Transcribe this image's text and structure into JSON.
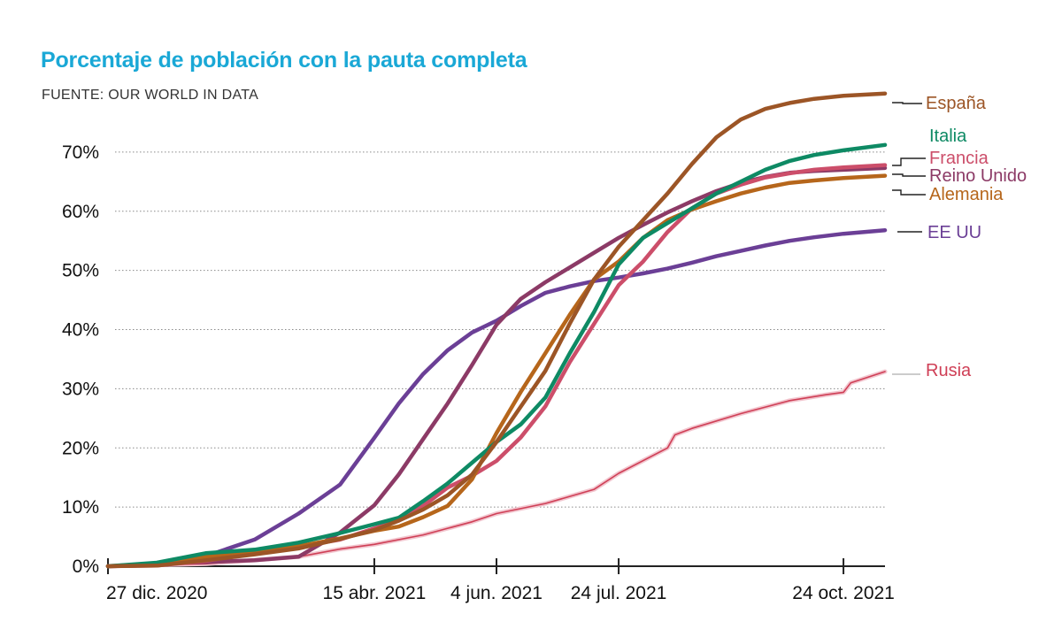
{
  "title": "Porcentaje de población con la pauta completa",
  "source": "FUENTE: OUR WORLD IN DATA",
  "chart_data": {
    "type": "line",
    "title": "Porcentaje de población con la pauta completa",
    "x_axis": {
      "type": "date",
      "range": [
        "2020-12-27",
        "2021-11-10"
      ],
      "ticks": [
        {
          "date": "2020-12-27",
          "label": "27 dic. 2020"
        },
        {
          "date": "2021-04-15",
          "label": "15 abr. 2021"
        },
        {
          "date": "2021-06-04",
          "label": "4 jun. 2021"
        },
        {
          "date": "2021-07-24",
          "label": "24 jul. 2021"
        },
        {
          "date": "2021-10-24",
          "label": "24 oct. 2021"
        }
      ]
    },
    "y_axis": {
      "range": [
        0,
        80
      ],
      "ticks": [
        0,
        10,
        20,
        30,
        40,
        50,
        60,
        70
      ],
      "tick_labels": [
        "0%",
        "10%",
        "20%",
        "30%",
        "40%",
        "50%",
        "60%",
        "70%"
      ],
      "grid": true
    },
    "legend": "direct labels at line ends (right)",
    "series": [
      {
        "name": "España",
        "color": "#9c5526",
        "points": [
          [
            "2020-12-27",
            0
          ],
          [
            "2021-01-16",
            0.1
          ],
          [
            "2021-02-05",
            1
          ],
          [
            "2021-02-25",
            2
          ],
          [
            "2021-03-15",
            3
          ],
          [
            "2021-04-01",
            4.6
          ],
          [
            "2021-04-15",
            6.1
          ],
          [
            "2021-04-25",
            7.7
          ],
          [
            "2021-05-05",
            9.6
          ],
          [
            "2021-05-15",
            12
          ],
          [
            "2021-05-25",
            15.5
          ],
          [
            "2021-06-04",
            21
          ],
          [
            "2021-06-14",
            27
          ],
          [
            "2021-06-24",
            33
          ],
          [
            "2021-07-04",
            41
          ],
          [
            "2021-07-14",
            48.5
          ],
          [
            "2021-07-24",
            54
          ],
          [
            "2021-08-03",
            58.5
          ],
          [
            "2021-08-13",
            63
          ],
          [
            "2021-08-23",
            68
          ],
          [
            "2021-09-02",
            72.5
          ],
          [
            "2021-09-12",
            75.5
          ],
          [
            "2021-09-22",
            77.3
          ],
          [
            "2021-10-02",
            78.3
          ],
          [
            "2021-10-12",
            79
          ],
          [
            "2021-10-24",
            79.5
          ],
          [
            "2021-11-10",
            79.9
          ]
        ]
      },
      {
        "name": "Italia",
        "color": "#0e8a64",
        "points": [
          [
            "2020-12-27",
            0
          ],
          [
            "2021-01-16",
            0.6
          ],
          [
            "2021-02-05",
            2.2
          ],
          [
            "2021-02-25",
            2.8
          ],
          [
            "2021-03-15",
            4
          ],
          [
            "2021-04-01",
            5.6
          ],
          [
            "2021-04-15",
            7.1
          ],
          [
            "2021-04-25",
            8.2
          ],
          [
            "2021-05-05",
            11
          ],
          [
            "2021-05-15",
            14
          ],
          [
            "2021-05-25",
            17.5
          ],
          [
            "2021-06-04",
            21
          ],
          [
            "2021-06-14",
            24
          ],
          [
            "2021-06-24",
            28.5
          ],
          [
            "2021-07-04",
            36
          ],
          [
            "2021-07-14",
            43
          ],
          [
            "2021-07-24",
            51
          ],
          [
            "2021-08-03",
            55.5
          ],
          [
            "2021-08-13",
            58
          ],
          [
            "2021-08-23",
            60.5
          ],
          [
            "2021-09-02",
            63
          ],
          [
            "2021-09-12",
            65
          ],
          [
            "2021-09-22",
            67
          ],
          [
            "2021-10-02",
            68.5
          ],
          [
            "2021-10-12",
            69.5
          ],
          [
            "2021-10-24",
            70.3
          ],
          [
            "2021-11-10",
            71.2
          ]
        ]
      },
      {
        "name": "Francia",
        "color": "#cc4e6a",
        "points": [
          [
            "2020-12-27",
            0
          ],
          [
            "2021-01-16",
            0.1
          ],
          [
            "2021-02-05",
            0.9
          ],
          [
            "2021-02-25",
            2.3
          ],
          [
            "2021-03-15",
            3.3
          ],
          [
            "2021-04-01",
            4.5
          ],
          [
            "2021-04-15",
            6.4
          ],
          [
            "2021-04-25",
            7.7
          ],
          [
            "2021-05-05",
            10.2
          ],
          [
            "2021-05-15",
            13.3
          ],
          [
            "2021-05-25",
            15.3
          ],
          [
            "2021-06-04",
            17.8
          ],
          [
            "2021-06-14",
            21.8
          ],
          [
            "2021-06-24",
            27
          ],
          [
            "2021-07-04",
            34.5
          ],
          [
            "2021-07-14",
            41
          ],
          [
            "2021-07-24",
            47.5
          ],
          [
            "2021-08-03",
            51.5
          ],
          [
            "2021-08-13",
            56.5
          ],
          [
            "2021-08-23",
            60.5
          ],
          [
            "2021-09-02",
            63
          ],
          [
            "2021-09-12",
            64.5
          ],
          [
            "2021-09-22",
            65.7
          ],
          [
            "2021-10-02",
            66.4
          ],
          [
            "2021-10-12",
            67
          ],
          [
            "2021-10-24",
            67.4
          ],
          [
            "2021-11-10",
            67.8
          ]
        ]
      },
      {
        "name": "Reino Unido",
        "color": "#8c3a66",
        "points": [
          [
            "2020-12-27",
            0
          ],
          [
            "2021-01-16",
            0.5
          ],
          [
            "2021-02-05",
            0.7
          ],
          [
            "2021-02-25",
            1
          ],
          [
            "2021-03-15",
            1.6
          ],
          [
            "2021-04-01",
            5.7
          ],
          [
            "2021-04-15",
            10.3
          ],
          [
            "2021-04-25",
            15.5
          ],
          [
            "2021-05-05",
            21.5
          ],
          [
            "2021-05-15",
            27.5
          ],
          [
            "2021-05-25",
            34
          ],
          [
            "2021-06-04",
            40.8
          ],
          [
            "2021-06-14",
            45.2
          ],
          [
            "2021-06-24",
            48
          ],
          [
            "2021-07-04",
            50.5
          ],
          [
            "2021-07-14",
            53
          ],
          [
            "2021-07-24",
            55.5
          ],
          [
            "2021-08-03",
            57.7
          ],
          [
            "2021-08-13",
            59.8
          ],
          [
            "2021-08-23",
            61.7
          ],
          [
            "2021-09-02",
            63.4
          ],
          [
            "2021-09-12",
            64.8
          ],
          [
            "2021-09-22",
            65.8
          ],
          [
            "2021-10-02",
            66.5
          ],
          [
            "2021-10-12",
            66.8
          ],
          [
            "2021-10-24",
            67
          ],
          [
            "2021-11-10",
            67.3
          ]
        ]
      },
      {
        "name": "Alemania",
        "color": "#b6661b",
        "points": [
          [
            "2020-12-27",
            0
          ],
          [
            "2021-01-16",
            0.2
          ],
          [
            "2021-02-05",
            1.6
          ],
          [
            "2021-02-25",
            2.6
          ],
          [
            "2021-03-15",
            3.4
          ],
          [
            "2021-04-01",
            4.7
          ],
          [
            "2021-04-15",
            6
          ],
          [
            "2021-04-25",
            6.7
          ],
          [
            "2021-05-05",
            8.3
          ],
          [
            "2021-05-15",
            10.2
          ],
          [
            "2021-05-25",
            14.7
          ],
          [
            "2021-06-04",
            22.5
          ],
          [
            "2021-06-14",
            29.5
          ],
          [
            "2021-06-24",
            36
          ],
          [
            "2021-07-04",
            42.5
          ],
          [
            "2021-07-14",
            48.5
          ],
          [
            "2021-07-24",
            51.5
          ],
          [
            "2021-08-03",
            55.5
          ],
          [
            "2021-08-13",
            58.5
          ],
          [
            "2021-08-23",
            60.3
          ],
          [
            "2021-09-02",
            61.7
          ],
          [
            "2021-09-12",
            63
          ],
          [
            "2021-09-22",
            64
          ],
          [
            "2021-10-02",
            64.8
          ],
          [
            "2021-10-12",
            65.2
          ],
          [
            "2021-10-24",
            65.6
          ],
          [
            "2021-11-10",
            66
          ]
        ]
      },
      {
        "name": "EE UU",
        "color": "#6b3f96",
        "points": [
          [
            "2020-12-27",
            0
          ],
          [
            "2021-01-16",
            0.2
          ],
          [
            "2021-02-05",
            1.7
          ],
          [
            "2021-02-25",
            4.5
          ],
          [
            "2021-03-15",
            8.9
          ],
          [
            "2021-04-01",
            13.8
          ],
          [
            "2021-04-15",
            21.7
          ],
          [
            "2021-04-25",
            27.5
          ],
          [
            "2021-05-05",
            32.5
          ],
          [
            "2021-05-15",
            36.5
          ],
          [
            "2021-05-25",
            39.5
          ],
          [
            "2021-06-04",
            41.5
          ],
          [
            "2021-06-14",
            44
          ],
          [
            "2021-06-24",
            46.2
          ],
          [
            "2021-07-04",
            47.3
          ],
          [
            "2021-07-14",
            48.2
          ],
          [
            "2021-07-24",
            48.8
          ],
          [
            "2021-08-03",
            49.5
          ],
          [
            "2021-08-13",
            50.3
          ],
          [
            "2021-08-23",
            51.3
          ],
          [
            "2021-09-02",
            52.4
          ],
          [
            "2021-09-12",
            53.3
          ],
          [
            "2021-09-22",
            54.2
          ],
          [
            "2021-10-02",
            55
          ],
          [
            "2021-10-12",
            55.6
          ],
          [
            "2021-10-24",
            56.2
          ],
          [
            "2021-11-10",
            56.8
          ]
        ]
      },
      {
        "name": "Rusia",
        "color": "#cf3f56",
        "points": [
          [
            "2020-12-27",
            0
          ],
          [
            "2021-02-05",
            0.4
          ],
          [
            "2021-03-15",
            1.6
          ],
          [
            "2021-04-01",
            2.9
          ],
          [
            "2021-04-15",
            3.7
          ],
          [
            "2021-05-05",
            5.3
          ],
          [
            "2021-05-25",
            7.5
          ],
          [
            "2021-06-04",
            8.9
          ],
          [
            "2021-06-24",
            10.6
          ],
          [
            "2021-07-14",
            13
          ],
          [
            "2021-07-24",
            15.7
          ],
          [
            "2021-08-13",
            20
          ],
          [
            "2021-08-16",
            22.2
          ],
          [
            "2021-08-23",
            23.3
          ],
          [
            "2021-09-12",
            25.8
          ],
          [
            "2021-10-02",
            28
          ],
          [
            "2021-10-17",
            29
          ],
          [
            "2021-10-24",
            29.4
          ],
          [
            "2021-10-27",
            31
          ],
          [
            "2021-11-10",
            32.9
          ]
        ]
      }
    ]
  }
}
